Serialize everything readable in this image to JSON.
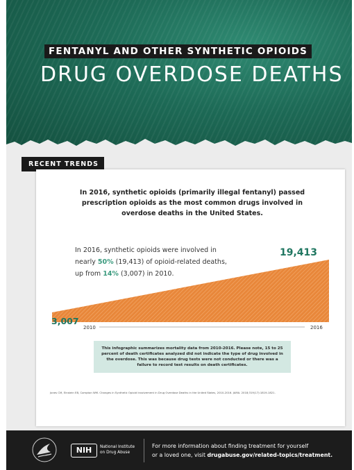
{
  "header": {
    "kicker": "FENTANYL AND OTHER SYNTHETIC OPIOIDS",
    "title": "DRUG OVERDOSE DEATHS"
  },
  "section_label": "RECENT TRENDS",
  "lead": "In 2016, synthetic opioids (primarily illegal fentanyl) passed prescription opioids as the most common drugs involved in overdose deaths in the United States.",
  "stat": {
    "prefix": "In 2016, synthetic opioids were involved in nearly ",
    "pct_2016": "50%",
    "mid": " (19,413) of opioid-related deaths, up from ",
    "pct_2010": "14%",
    "suffix": " (3,007) in 2010."
  },
  "chart_data": {
    "type": "area",
    "x": [
      "2010",
      "2016"
    ],
    "values": [
      3007,
      19413
    ],
    "value_labels": [
      "3,007",
      "19,413"
    ],
    "color": "#e8873a"
  },
  "note": "This infographic summarizes mortality data from 2010-2016. Please note, 15 to 25 percent of death certificates analyzed did not indicate the type of drug involved in the overdose. This was because drug tests were not conducted or there was a failure to record test results on death certificates.",
  "citation": "Jones CM, Einstein EB, Compton WM. Changes in Synthetic Opioid Involvement in Drug Overdose Deaths in the United States, 2010-2016. JAMA. 2018;319(17):1819-1821.",
  "footer": {
    "nih_logo": "NIH",
    "nih_name_1": "National Institute",
    "nih_name_2": "on Drug Abuse",
    "text_1": "For more information about finding treatment for yourself",
    "text_2_prefix": "or a loved one, visit ",
    "text_2_link": "drugabuse.gov/related-topics/treatment."
  },
  "colors": {
    "green": "#1d6a56",
    "accent": "#3b9a7e",
    "orange": "#e8873a",
    "note_bg": "#d3e8e2"
  }
}
